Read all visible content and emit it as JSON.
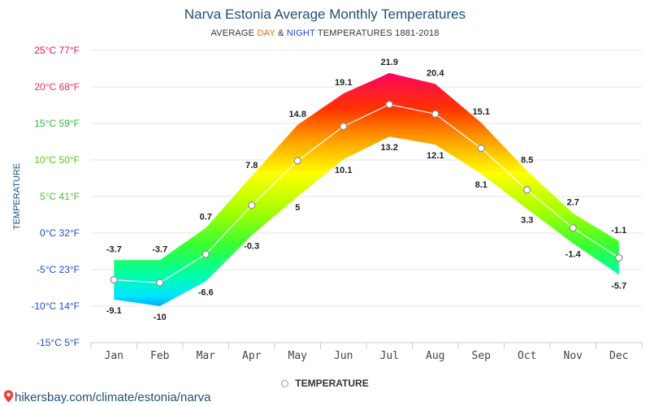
{
  "title": "Narva Estonia Average Monthly Temperatures",
  "subtitle": {
    "prefix": "AVERAGE ",
    "day": "DAY",
    "amp": " & ",
    "night": "NIGHT",
    "suffix": " TEMPERATURES 1881-2018"
  },
  "legend": {
    "label": "TEMPERATURE"
  },
  "footer": {
    "text": "hikersbay.com/climate/estonia/narva",
    "icon": "location-pin-icon"
  },
  "colors": {
    "title": "#1f4e79",
    "day": "#ff6a00",
    "night": "#1d3fd8",
    "grid": "#e6e6e6",
    "avg_line": "#ffffff"
  },
  "chart_data": {
    "type": "area",
    "title": "Narva Estonia Average Monthly Temperatures",
    "ylabel": "TEMPERATURE",
    "categories": [
      "Jan",
      "Feb",
      "Mar",
      "Apr",
      "May",
      "Jun",
      "Jul",
      "Aug",
      "Sep",
      "Oct",
      "Nov",
      "Dec"
    ],
    "ylim": [
      -15,
      25
    ],
    "y_ticks": [
      {
        "value": 25,
        "label": "25°C 77°F",
        "color": "#e8115a"
      },
      {
        "value": 20,
        "label": "20°C 68°F",
        "color": "#ff2a55"
      },
      {
        "value": 15,
        "label": "15°C 59°F",
        "color": "#37b43a"
      },
      {
        "value": 10,
        "label": "10°C 50°F",
        "color": "#5ec21b"
      },
      {
        "value": 5,
        "label": "5°C 41°F",
        "color": "#4cc233"
      },
      {
        "value": 0,
        "label": "0°C 32°F",
        "color": "#1a4fd6"
      },
      {
        "value": -5,
        "label": "-5°C 23°F",
        "color": "#1a4fd6"
      },
      {
        "value": -10,
        "label": "-10°C 14°F",
        "color": "#1a4fd6"
      },
      {
        "value": -15,
        "label": "-15°C 5°F",
        "color": "#1a4fd6"
      }
    ],
    "series": [
      {
        "name": "DAY",
        "values": [
          -3.7,
          -3.7,
          0.7,
          7.8,
          14.8,
          19.1,
          21.9,
          20.4,
          15.1,
          8.5,
          2.7,
          -1.1
        ]
      },
      {
        "name": "NIGHT",
        "values": [
          -9.1,
          -10,
          -6.6,
          -0.3,
          5,
          10.1,
          13.2,
          12.1,
          8.1,
          3.3,
          -1.4,
          -5.7
        ]
      },
      {
        "name": "TEMPERATURE",
        "values": [
          -6.4,
          -6.8,
          -2.9,
          3.8,
          9.9,
          14.6,
          17.6,
          16.3,
          11.6,
          5.9,
          0.7,
          -3.4
        ]
      }
    ],
    "day_labels": [
      "-3.7",
      "-3.7",
      "0.7",
      "7.8",
      "14.8",
      "19.1",
      "21.9",
      "20.4",
      "15.1",
      "8.5",
      "2.7",
      "-1.1"
    ],
    "night_labels": [
      "-9.1",
      "-10",
      "-6.6",
      "-0.3",
      "5",
      "10.1",
      "13.2",
      "12.1",
      "8.1",
      "3.3",
      "-1.4",
      "-5.7"
    ],
    "grid": true,
    "legend_position": "bottom"
  }
}
